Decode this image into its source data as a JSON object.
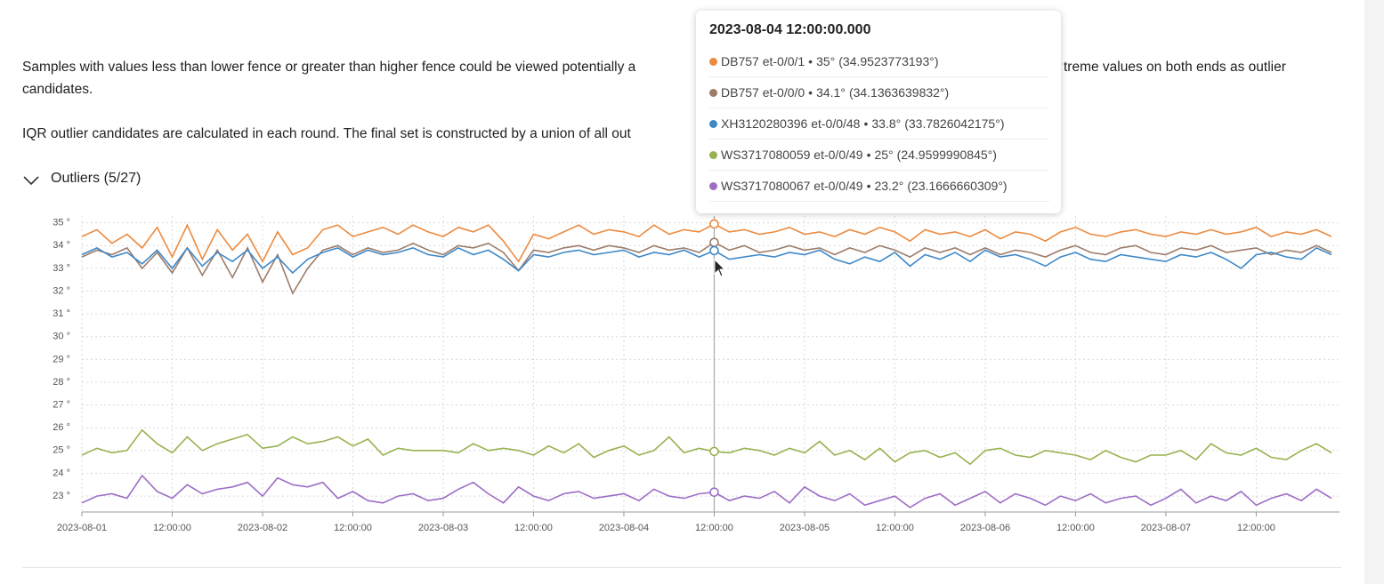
{
  "paragraphs": [
    [
      "Samples with values less than lower fence or greater than higher fence could be viewed potentially a",
      "treme values on both ends as outlier",
      "candidates."
    ],
    [
      "IQR outlier candidates are calculated in each round. The final set is constructed by a union of all out"
    ]
  ],
  "section": "Outliers (5/27)",
  "chart_data": {
    "type": "line",
    "x": [
      "2023-08-01 00:00:00",
      "2023-08-01 02:00:00",
      "2023-08-01 04:00:00",
      "2023-08-01 06:00:00",
      "2023-08-01 08:00:00",
      "2023-08-01 10:00:00",
      "2023-08-01 12:00:00",
      "2023-08-01 14:00:00",
      "2023-08-01 16:00:00",
      "2023-08-01 18:00:00",
      "2023-08-01 20:00:00",
      "2023-08-01 22:00:00",
      "2023-08-02 00:00:00",
      "2023-08-02 02:00:00",
      "2023-08-02 04:00:00",
      "2023-08-02 06:00:00",
      "2023-08-02 08:00:00",
      "2023-08-02 10:00:00",
      "2023-08-02 12:00:00",
      "2023-08-02 14:00:00",
      "2023-08-02 16:00:00",
      "2023-08-02 18:00:00",
      "2023-08-02 20:00:00",
      "2023-08-02 22:00:00",
      "2023-08-03 00:00:00",
      "2023-08-03 02:00:00",
      "2023-08-03 04:00:00",
      "2023-08-03 06:00:00",
      "2023-08-03 08:00:00",
      "2023-08-03 10:00:00",
      "2023-08-03 12:00:00",
      "2023-08-03 14:00:00",
      "2023-08-03 16:00:00",
      "2023-08-03 18:00:00",
      "2023-08-03 20:00:00",
      "2023-08-03 22:00:00",
      "2023-08-04 00:00:00",
      "2023-08-04 02:00:00",
      "2023-08-04 04:00:00",
      "2023-08-04 06:00:00",
      "2023-08-04 08:00:00",
      "2023-08-04 10:00:00",
      "2023-08-04 12:00:00",
      "2023-08-04 14:00:00",
      "2023-08-04 16:00:00",
      "2023-08-04 18:00:00",
      "2023-08-04 20:00:00",
      "2023-08-04 22:00:00",
      "2023-08-05 00:00:00",
      "2023-08-05 02:00:00",
      "2023-08-05 04:00:00",
      "2023-08-05 06:00:00",
      "2023-08-05 08:00:00",
      "2023-08-05 10:00:00",
      "2023-08-05 12:00:00",
      "2023-08-05 14:00:00",
      "2023-08-05 16:00:00",
      "2023-08-05 18:00:00",
      "2023-08-05 20:00:00",
      "2023-08-05 22:00:00",
      "2023-08-06 00:00:00",
      "2023-08-06 02:00:00",
      "2023-08-06 04:00:00",
      "2023-08-06 06:00:00",
      "2023-08-06 08:00:00",
      "2023-08-06 10:00:00",
      "2023-08-06 12:00:00",
      "2023-08-06 14:00:00",
      "2023-08-06 16:00:00",
      "2023-08-06 18:00:00",
      "2023-08-06 20:00:00",
      "2023-08-06 22:00:00",
      "2023-08-07 00:00:00",
      "2023-08-07 02:00:00",
      "2023-08-07 04:00:00",
      "2023-08-07 06:00:00",
      "2023-08-07 08:00:00",
      "2023-08-07 10:00:00",
      "2023-08-07 12:00:00",
      "2023-08-07 14:00:00",
      "2023-08-07 16:00:00",
      "2023-08-07 18:00:00",
      "2023-08-07 20:00:00",
      "2023-08-07 22:00:00"
    ],
    "series": [
      {
        "name": "DB757 et-0/0/1",
        "color": "#ec8a3f",
        "values": [
          34.4,
          34.7,
          34.1,
          34.5,
          33.9,
          34.8,
          33.5,
          34.9,
          33.4,
          34.7,
          33.8,
          34.5,
          33.3,
          34.6,
          33.6,
          33.9,
          34.7,
          34.9,
          34.4,
          34.6,
          34.8,
          34.5,
          34.9,
          34.6,
          34.4,
          34.8,
          34.6,
          34.9,
          34.2,
          33.3,
          34.5,
          34.3,
          34.6,
          34.9,
          34.5,
          34.7,
          34.6,
          34.4,
          34.9,
          34.5,
          34.7,
          34.6,
          34.95,
          34.6,
          34.7,
          34.5,
          34.6,
          34.8,
          34.5,
          34.6,
          34.4,
          34.7,
          34.5,
          34.8,
          34.6,
          34.2,
          34.7,
          34.5,
          34.6,
          34.4,
          34.7,
          34.3,
          34.6,
          34.5,
          34.2,
          34.6,
          34.8,
          34.5,
          34.4,
          34.6,
          34.7,
          34.5,
          34.4,
          34.6,
          34.5,
          34.7,
          34.5,
          34.6,
          34.8,
          34.4,
          34.6,
          34.5,
          34.7,
          34.4
        ]
      },
      {
        "name": "DB757 et-0/0/0",
        "color": "#9c7c6a",
        "values": [
          33.5,
          33.8,
          33.6,
          33.9,
          33.0,
          33.7,
          32.8,
          33.9,
          32.7,
          33.8,
          32.6,
          33.9,
          32.4,
          33.6,
          31.9,
          33.0,
          33.8,
          34.0,
          33.6,
          33.9,
          33.7,
          33.8,
          34.1,
          33.8,
          33.6,
          34.0,
          33.9,
          34.1,
          33.7,
          32.9,
          33.8,
          33.7,
          33.9,
          34.0,
          33.8,
          34.0,
          33.9,
          33.7,
          34.0,
          33.8,
          33.9,
          33.7,
          34.14,
          33.8,
          34.0,
          33.7,
          33.8,
          34.0,
          33.8,
          33.9,
          33.6,
          33.9,
          33.7,
          34.0,
          33.8,
          33.5,
          33.9,
          33.7,
          33.9,
          33.6,
          33.9,
          33.6,
          33.8,
          33.7,
          33.5,
          33.8,
          34.0,
          33.7,
          33.6,
          33.9,
          34.0,
          33.7,
          33.6,
          33.9,
          33.8,
          34.0,
          33.7,
          33.8,
          33.9,
          33.6,
          33.8,
          33.7,
          34.0,
          33.7
        ]
      },
      {
        "name": "XH3120280396 et-0/0/48",
        "color": "#3f88c8",
        "values": [
          33.6,
          33.9,
          33.5,
          33.7,
          33.2,
          33.8,
          33.0,
          33.9,
          33.1,
          33.7,
          33.3,
          33.8,
          33.0,
          33.5,
          32.8,
          33.4,
          33.7,
          33.9,
          33.5,
          33.8,
          33.6,
          33.7,
          33.9,
          33.6,
          33.5,
          33.9,
          33.6,
          33.8,
          33.4,
          32.9,
          33.6,
          33.5,
          33.7,
          33.8,
          33.6,
          33.7,
          33.8,
          33.5,
          33.7,
          33.6,
          33.8,
          33.5,
          33.78,
          33.4,
          33.5,
          33.6,
          33.5,
          33.7,
          33.6,
          33.8,
          33.4,
          33.2,
          33.5,
          33.3,
          33.7,
          33.1,
          33.6,
          33.4,
          33.7,
          33.3,
          33.8,
          33.5,
          33.6,
          33.4,
          33.1,
          33.5,
          33.7,
          33.4,
          33.3,
          33.6,
          33.5,
          33.4,
          33.3,
          33.6,
          33.5,
          33.7,
          33.4,
          33.0,
          33.6,
          33.7,
          33.5,
          33.4,
          33.9,
          33.6
        ]
      },
      {
        "name": "WS3717080059 et-0/0/49",
        "color": "#97b24f",
        "values": [
          24.8,
          25.1,
          24.9,
          25.0,
          25.9,
          25.3,
          24.9,
          25.6,
          25.0,
          25.3,
          25.5,
          25.7,
          25.1,
          25.2,
          25.6,
          25.3,
          25.4,
          25.6,
          25.2,
          25.5,
          24.8,
          25.1,
          25.0,
          25.0,
          25.0,
          24.9,
          25.3,
          25.0,
          25.1,
          25.0,
          24.8,
          25.2,
          24.9,
          25.3,
          24.7,
          25.0,
          25.2,
          24.8,
          25.0,
          25.6,
          24.9,
          25.1,
          24.96,
          24.9,
          25.1,
          25.0,
          24.8,
          25.1,
          24.9,
          25.4,
          24.8,
          25.0,
          24.6,
          25.1,
          24.5,
          24.9,
          25.0,
          24.7,
          24.9,
          24.4,
          25.0,
          25.1,
          24.8,
          24.7,
          25.0,
          24.9,
          24.8,
          24.6,
          25.0,
          24.7,
          24.5,
          24.8,
          24.8,
          25.0,
          24.6,
          25.3,
          24.9,
          24.8,
          25.1,
          24.7,
          24.6,
          25.0,
          25.3,
          24.9
        ]
      },
      {
        "name": "WS3717080067 et-0/0/49",
        "color": "#9d6dc6",
        "values": [
          22.7,
          23.0,
          23.1,
          22.9,
          23.9,
          23.2,
          22.9,
          23.5,
          23.1,
          23.3,
          23.4,
          23.6,
          23.0,
          23.8,
          23.5,
          23.4,
          23.6,
          22.9,
          23.2,
          22.8,
          22.7,
          23.0,
          23.1,
          22.8,
          22.9,
          23.3,
          23.6,
          23.1,
          22.7,
          23.4,
          23.0,
          22.8,
          23.1,
          23.2,
          22.9,
          23.0,
          23.1,
          22.8,
          23.3,
          23.0,
          22.9,
          23.1,
          23.17,
          22.8,
          23.0,
          22.9,
          23.2,
          22.7,
          23.4,
          23.0,
          22.8,
          23.1,
          22.6,
          22.8,
          23.0,
          22.5,
          22.9,
          23.1,
          22.6,
          22.9,
          23.2,
          22.7,
          23.1,
          22.9,
          22.6,
          23.0,
          22.8,
          23.1,
          22.7,
          22.9,
          23.0,
          22.6,
          22.9,
          23.3,
          22.7,
          23.0,
          22.8,
          23.2,
          22.6,
          22.9,
          23.1,
          22.8,
          23.3,
          22.9
        ]
      }
    ],
    "ylim": [
      22.3,
      35.3
    ],
    "yticks": [
      {
        "value": 23,
        "label": "23 °"
      },
      {
        "value": 24,
        "label": "24 °"
      },
      {
        "value": 25,
        "label": "25 °"
      },
      {
        "value": 26,
        "label": "26 °"
      },
      {
        "value": 27,
        "label": "27 °"
      },
      {
        "value": 28,
        "label": "28 °"
      },
      {
        "value": 29,
        "label": "29 °"
      },
      {
        "value": 30,
        "label": "30 °"
      },
      {
        "value": 31,
        "label": "31 °"
      },
      {
        "value": 32,
        "label": "32 °"
      },
      {
        "value": 33,
        "label": "33 °"
      },
      {
        "value": 34,
        "label": "34 °"
      },
      {
        "value": 35,
        "label": "35 °"
      }
    ],
    "xticks": [
      {
        "value": "2023-08-01 00:00:00",
        "label": "2023-08-01"
      },
      {
        "value": "2023-08-01 12:00:00",
        "label": "12:00:00"
      },
      {
        "value": "2023-08-02 00:00:00",
        "label": "2023-08-02"
      },
      {
        "value": "2023-08-02 12:00:00",
        "label": "12:00:00"
      },
      {
        "value": "2023-08-03 00:00:00",
        "label": "2023-08-03"
      },
      {
        "value": "2023-08-03 12:00:00",
        "label": "12:00:00"
      },
      {
        "value": "2023-08-04 00:00:00",
        "label": "2023-08-04"
      },
      {
        "value": "2023-08-04 12:00:00",
        "label": "12:00:00"
      },
      {
        "value": "2023-08-05 00:00:00",
        "label": "2023-08-05"
      },
      {
        "value": "2023-08-05 12:00:00",
        "label": "12:00:00"
      },
      {
        "value": "2023-08-06 00:00:00",
        "label": "2023-08-06"
      },
      {
        "value": "2023-08-06 12:00:00",
        "label": "12:00:00"
      },
      {
        "value": "2023-08-07 00:00:00",
        "label": "2023-08-07"
      },
      {
        "value": "2023-08-07 12:00:00",
        "label": "12:00:00"
      }
    ],
    "grid": true,
    "tooltip": {
      "title": "2023-08-04 12:00:00.000",
      "items": [
        {
          "label": "35°",
          "detail": "(34.9523773193°)"
        },
        {
          "label": "34.1°",
          "detail": "(34.1363639832°)"
        },
        {
          "label": "33.8°",
          "detail": "(33.7826042175°)"
        },
        {
          "label": "25°",
          "detail": "(24.9599990845°)"
        },
        {
          "label": "23.2°",
          "detail": "(23.1666660309°)"
        }
      ]
    }
  }
}
